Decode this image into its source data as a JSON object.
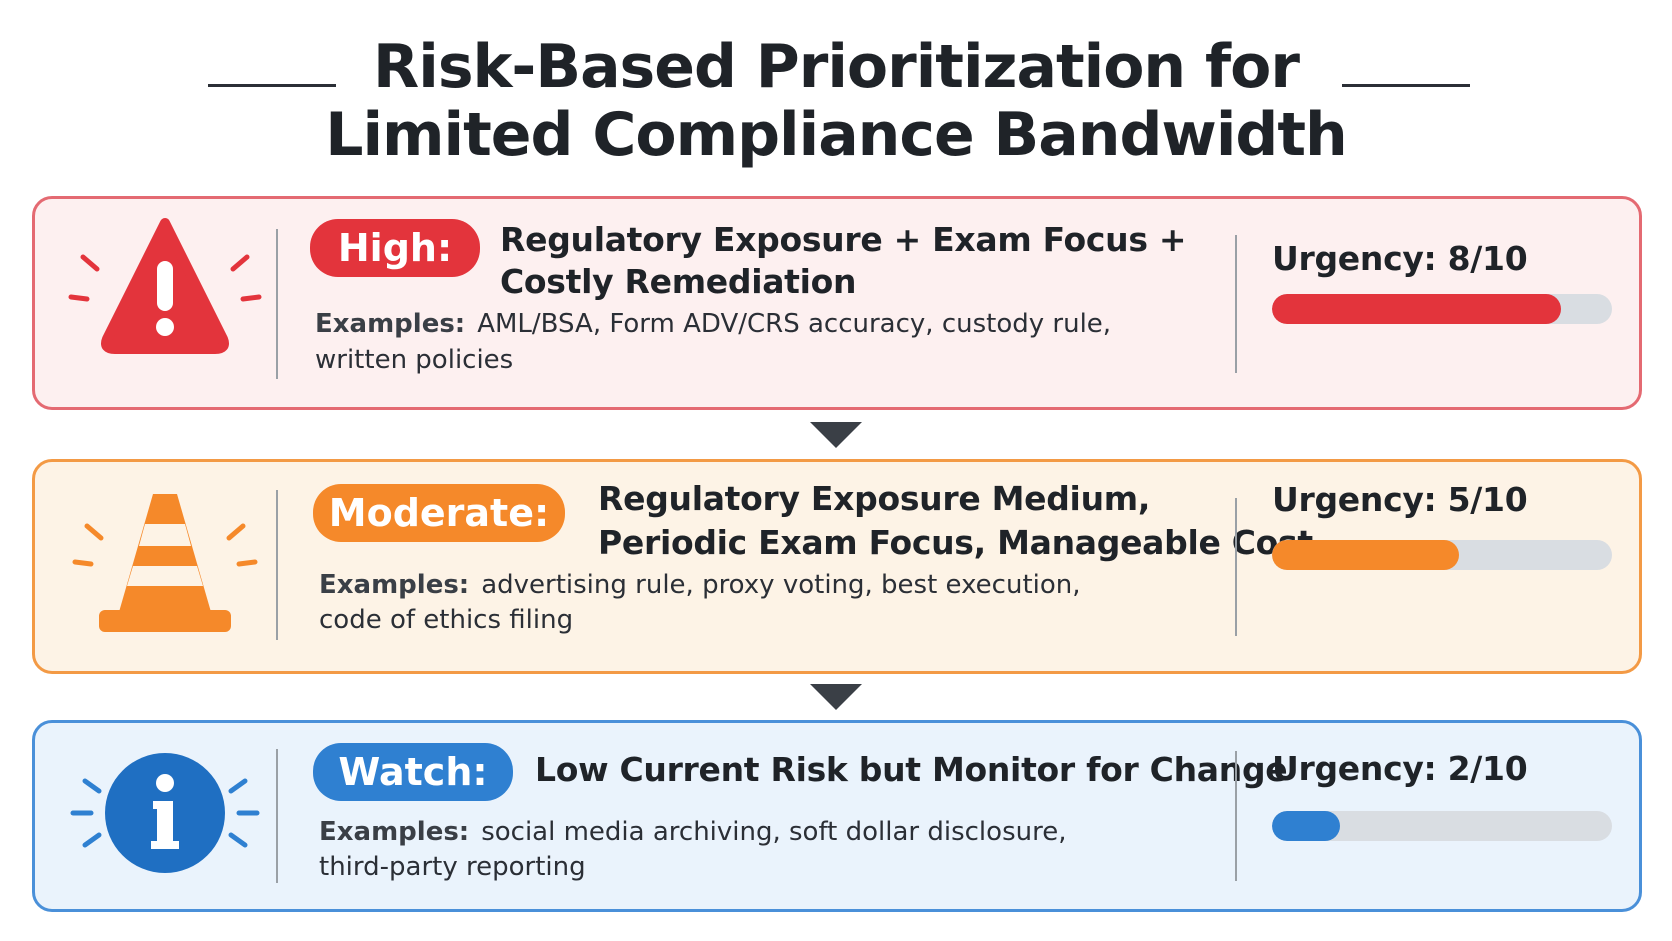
{
  "title": {
    "line1": "Risk-Based Prioritization for",
    "line2": "Limited Compliance Bandwidth"
  },
  "tiers": [
    {
      "id": "high",
      "label": "High:",
      "heading_line1": "Regulatory Exposure + Exam Focus +",
      "heading_line2": "Costly Remediation",
      "examples_label": "Examples:",
      "examples_line1": "AML/BSA, Form ADV/CRS accuracy, custody rule,",
      "examples_line2": "written policies",
      "urgency_text": "Urgency: 8/10",
      "urgency_value": 8,
      "urgency_max": 10,
      "icon": "warning-triangle-icon",
      "color": "#e3343c"
    },
    {
      "id": "moderate",
      "label": "Moderate:",
      "heading_line1": "Regulatory Exposure Medium,",
      "heading_line2": "Periodic Exam Focus, Manageable Cost",
      "examples_label": "Examples:",
      "examples_line1": "advertising rule, proxy voting, best execution,",
      "examples_line2": "code of ethics filing",
      "urgency_text": "Urgency: 5/10",
      "urgency_value": 5,
      "urgency_max": 10,
      "icon": "traffic-cone-icon",
      "color": "#f5892a"
    },
    {
      "id": "watch",
      "label": "Watch:",
      "heading_line1": "Low Current Risk but Monitor for Change",
      "heading_line2": "",
      "examples_label": "Examples:",
      "examples_line1": "social media archiving, soft dollar disclosure,",
      "examples_line2": "third-party reporting",
      "urgency_text": "Urgency: 2/10",
      "urgency_value": 2,
      "urgency_max": 10,
      "icon": "info-circle-icon",
      "color": "#2f80d1"
    }
  ]
}
